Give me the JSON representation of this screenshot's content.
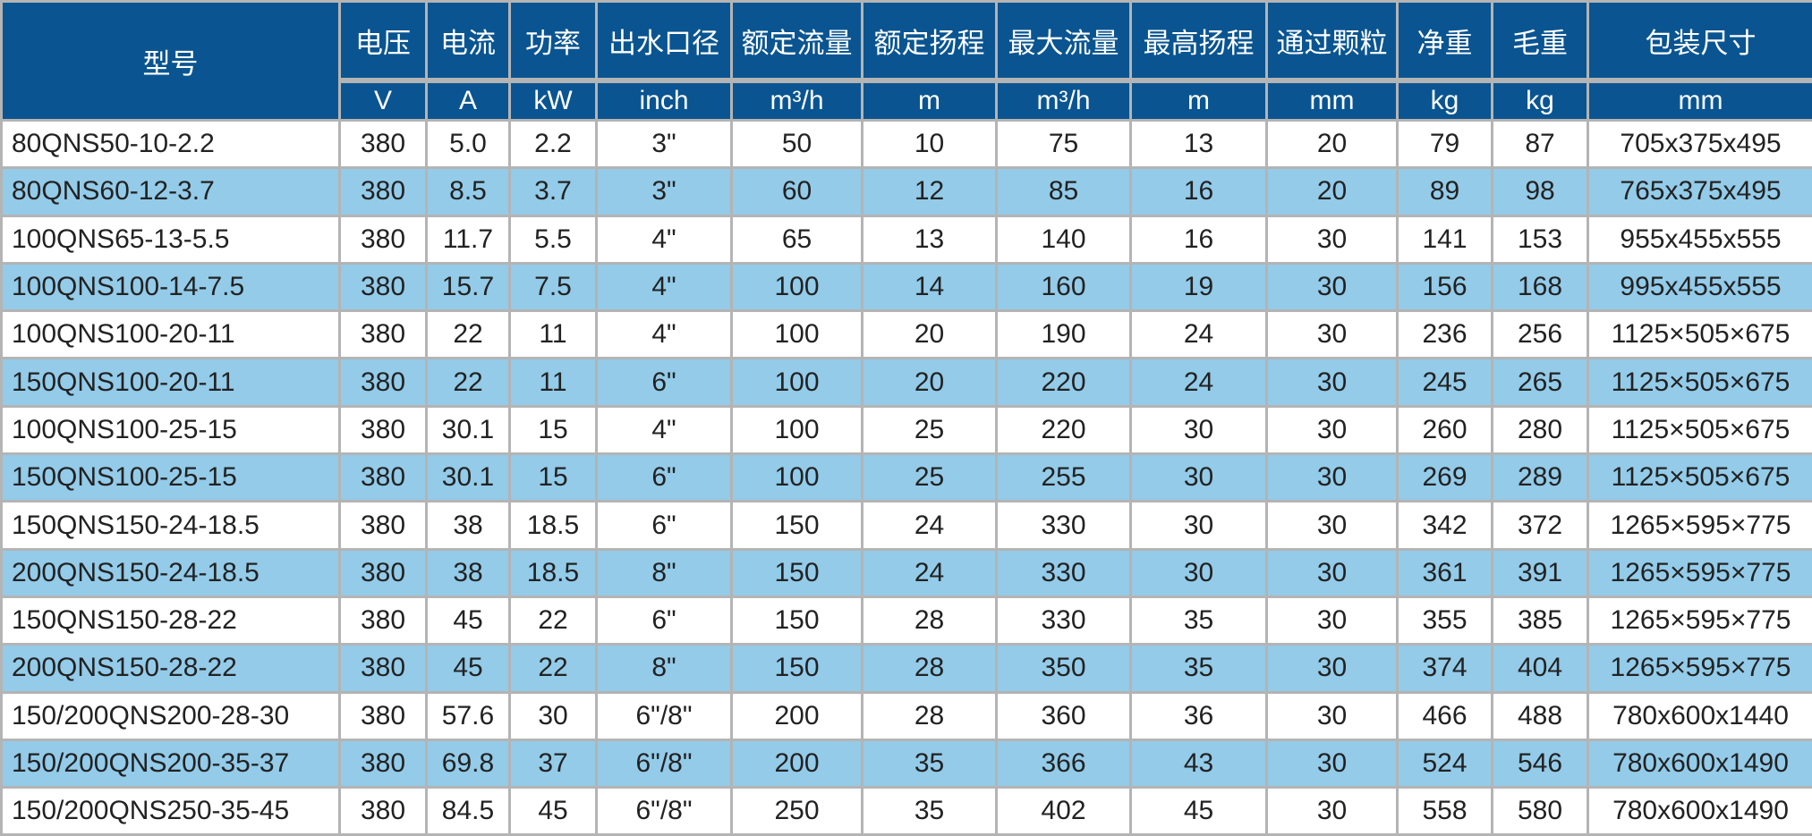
{
  "colors": {
    "header_bg": "#0a5591",
    "header_text": "#ffffff",
    "alt_row": "#93cbe9",
    "row": "#ffffff",
    "border": "#b4b4b4"
  },
  "headers": [
    "型号",
    "电压",
    "电流",
    "功率",
    "出水口径",
    "额定流量",
    "额定扬程",
    "最大流量",
    "最高扬程",
    "通过颗粒",
    "净重",
    "毛重",
    "包装尺寸"
  ],
  "units": [
    "V",
    "A",
    "kW",
    "inch",
    "m³/h",
    "m",
    "m³/h",
    "m",
    "mm",
    "kg",
    "kg",
    "mm"
  ],
  "rows": [
    [
      "80QNS50-10-2.2",
      "380",
      "5.0",
      "2.2",
      "3\"",
      "50",
      "10",
      "75",
      "13",
      "20",
      "79",
      "87",
      "705x375x495"
    ],
    [
      "80QNS60-12-3.7",
      "380",
      "8.5",
      "3.7",
      "3\"",
      "60",
      "12",
      "85",
      "16",
      "20",
      "89",
      "98",
      "765x375x495"
    ],
    [
      "100QNS65-13-5.5",
      "380",
      "11.7",
      "5.5",
      "4\"",
      "65",
      "13",
      "140",
      "16",
      "30",
      "141",
      "153",
      "955x455x555"
    ],
    [
      "100QNS100-14-7.5",
      "380",
      "15.7",
      "7.5",
      "4\"",
      "100",
      "14",
      "160",
      "19",
      "30",
      "156",
      "168",
      "995x455x555"
    ],
    [
      "100QNS100-20-11",
      "380",
      "22",
      "11",
      "4\"",
      "100",
      "20",
      "190",
      "24",
      "30",
      "236",
      "256",
      "1125×505×675"
    ],
    [
      "150QNS100-20-11",
      "380",
      "22",
      "11",
      "6\"",
      "100",
      "20",
      "220",
      "24",
      "30",
      "245",
      "265",
      "1125×505×675"
    ],
    [
      "100QNS100-25-15",
      "380",
      "30.1",
      "15",
      "4\"",
      "100",
      "25",
      "220",
      "30",
      "30",
      "260",
      "280",
      "1125×505×675"
    ],
    [
      "150QNS100-25-15",
      "380",
      "30.1",
      "15",
      "6\"",
      "100",
      "25",
      "255",
      "30",
      "30",
      "269",
      "289",
      "1125×505×675"
    ],
    [
      "150QNS150-24-18.5",
      "380",
      "38",
      "18.5",
      "6\"",
      "150",
      "24",
      "330",
      "30",
      "30",
      "342",
      "372",
      "1265×595×775"
    ],
    [
      "200QNS150-24-18.5",
      "380",
      "38",
      "18.5",
      "8\"",
      "150",
      "24",
      "330",
      "30",
      "30",
      "361",
      "391",
      "1265×595×775"
    ],
    [
      "150QNS150-28-22",
      "380",
      "45",
      "22",
      "6\"",
      "150",
      "28",
      "330",
      "35",
      "30",
      "355",
      "385",
      "1265×595×775"
    ],
    [
      "200QNS150-28-22",
      "380",
      "45",
      "22",
      "8\"",
      "150",
      "28",
      "350",
      "35",
      "30",
      "374",
      "404",
      "1265×595×775"
    ],
    [
      "150/200QNS200-28-30",
      "380",
      "57.6",
      "30",
      "6\"/8\"",
      "200",
      "28",
      "360",
      "36",
      "30",
      "466",
      "488",
      "780x600x1440"
    ],
    [
      "150/200QNS200-35-37",
      "380",
      "69.8",
      "37",
      "6\"/8\"",
      "200",
      "35",
      "366",
      "43",
      "30",
      "524",
      "546",
      "780x600x1490"
    ],
    [
      "150/200QNS250-35-45",
      "380",
      "84.5",
      "45",
      "6\"/8\"",
      "250",
      "35",
      "402",
      "45",
      "30",
      "558",
      "580",
      "780x600x1490"
    ]
  ]
}
